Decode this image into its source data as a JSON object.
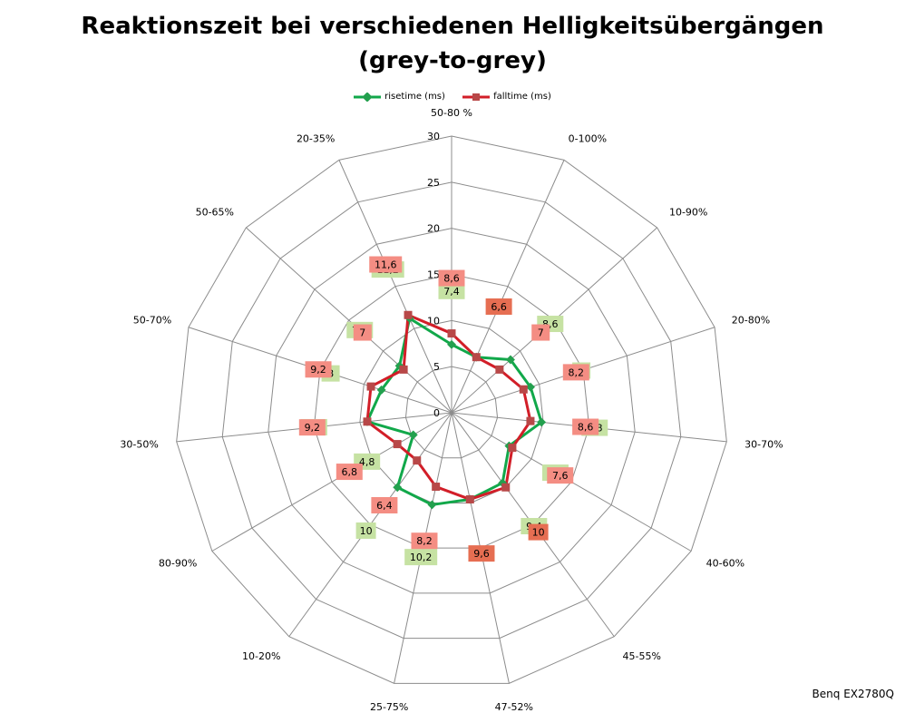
{
  "title_line1": "Reaktionszeit bei verschiedenen Helligkeitsübergängen",
  "title_line2": "(grey-to-grey)",
  "footer": "Benq EX2780Q",
  "colors": {
    "rise": "#11a84a",
    "fall": "#d21e28",
    "rise_marker": "#23a04e",
    "fall_marker": "#b84848",
    "rise_label_bg": "#c6e2a3",
    "fall_label_bg": "#f48d83",
    "fall_label_bg_dark": "#e66e52",
    "grid": "#8c8c8c"
  },
  "chart_data": {
    "type": "radar",
    "categories": [
      "50-80 %",
      "0-100%",
      "10-90%",
      "20-80%",
      "30-70%",
      "40-60%",
      "45-55%",
      "47-52%",
      "25-75%",
      "10-20%",
      "80-90%",
      "30-50%",
      "50-70%",
      "50-65%",
      "20-35%"
    ],
    "rlim": [
      0,
      30
    ],
    "rticks": [
      0,
      5,
      10,
      15,
      20,
      25,
      30
    ],
    "series": [
      {
        "name": "risetime (ms)",
        "values": [
          7.4,
          6.6,
          8.6,
          9,
          9.8,
          7.2,
          9.4,
          9.6,
          10.2,
          10,
          4.8,
          9.2,
          8,
          7.6,
          11.2
        ]
      },
      {
        "name": "falltime (ms)",
        "values": [
          8.6,
          6.6,
          7,
          8.2,
          8.6,
          7.6,
          10,
          9.6,
          8.2,
          6.4,
          6.8,
          9.2,
          9.2,
          7,
          11.6
        ]
      }
    ],
    "data_labels": {
      "risetime (ms)": [
        "7,4",
        "",
        "8,6",
        "9",
        "9,8",
        "7,2",
        "9,4",
        "",
        "10,2",
        "10",
        "4,8",
        "9,2",
        "8",
        "7,6",
        "11,2"
      ],
      "falltime (ms)": [
        "8,6",
        "6,6",
        "7",
        "8,2",
        "8,6",
        "7,6",
        "10",
        "9,6",
        "8,2",
        "6,4",
        "6,8",
        "9,2",
        "9,2",
        "7",
        "11,6"
      ]
    },
    "legend": "top",
    "grid": true
  }
}
